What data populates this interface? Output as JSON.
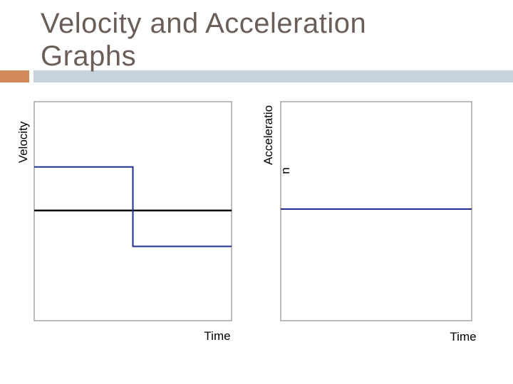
{
  "title": "Velocity and Acceleration Graphs",
  "colors": {
    "title": "#6b5e58",
    "series": "#1f2f8f",
    "axis": "#000000",
    "bar": "#c7d3dd",
    "accent": "#d38a5a"
  },
  "chart_data": [
    {
      "type": "line",
      "ylabel": "Velocity",
      "xlabel": "Time",
      "x_ticks": [],
      "y_ticks": [],
      "grid": false,
      "zero_line": true,
      "xlim": [
        0,
        1
      ],
      "ylim": [
        -1,
        1
      ],
      "series": [
        {
          "x": [
            0,
            0.5,
            0.5,
            1
          ],
          "y": [
            0.4,
            0.4,
            -0.33,
            -0.33
          ]
        }
      ]
    },
    {
      "type": "line",
      "ylabel_lines": [
        "Acceleratio",
        "n"
      ],
      "xlabel": "Time",
      "x_ticks": [],
      "y_ticks": [],
      "grid": false,
      "xlim": [
        0,
        1
      ],
      "ylim": [
        -1,
        1
      ],
      "series": [
        {
          "x": [
            0,
            1
          ],
          "y": [
            0,
            0
          ]
        }
      ]
    }
  ]
}
